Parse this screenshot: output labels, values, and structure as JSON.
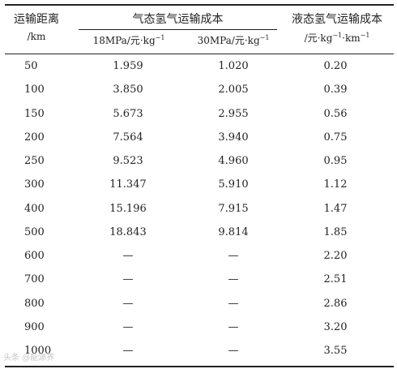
{
  "table": {
    "headers": {
      "distance_label": "运输距离",
      "distance_unit": "/km",
      "gas_group": "气态氢气运输成本",
      "gas_18_unit_base": "18MPa/元·kg",
      "gas_30_unit_base": "30MPa/元·kg",
      "liquid_label": "液态氢气运输成本",
      "liquid_unit_base": "/元·kg",
      "liquid_unit_mid": "·km",
      "exp": "−1"
    },
    "rows": [
      {
        "distance": "50",
        "gas_18": "1.959",
        "gas_30": "1.020",
        "liquid": "0.20"
      },
      {
        "distance": "100",
        "gas_18": "3.850",
        "gas_30": "2.005",
        "liquid": "0.39"
      },
      {
        "distance": "150",
        "gas_18": "5.673",
        "gas_30": "2.955",
        "liquid": "0.56"
      },
      {
        "distance": "200",
        "gas_18": "7.564",
        "gas_30": "3.940",
        "liquid": "0.75"
      },
      {
        "distance": "250",
        "gas_18": "9.523",
        "gas_30": "4.960",
        "liquid": "0.95"
      },
      {
        "distance": "300",
        "gas_18": "11.347",
        "gas_30": "5.910",
        "liquid": "1.12"
      },
      {
        "distance": "400",
        "gas_18": "15.196",
        "gas_30": "7.915",
        "liquid": "1.47"
      },
      {
        "distance": "500",
        "gas_18": "18.843",
        "gas_30": "9.814",
        "liquid": "1.85"
      },
      {
        "distance": "600",
        "gas_18": "—",
        "gas_30": "—",
        "liquid": "2.20"
      },
      {
        "distance": "700",
        "gas_18": "—",
        "gas_30": "—",
        "liquid": "2.51"
      },
      {
        "distance": "800",
        "gas_18": "—",
        "gas_30": "—",
        "liquid": "2.86"
      },
      {
        "distance": "900",
        "gas_18": "—",
        "gas_30": "—",
        "liquid": "3.20"
      },
      {
        "distance": "1000",
        "gas_18": "—",
        "gas_30": "—",
        "liquid": "3.55"
      }
    ]
  },
  "watermark": "头条 @能源界"
}
